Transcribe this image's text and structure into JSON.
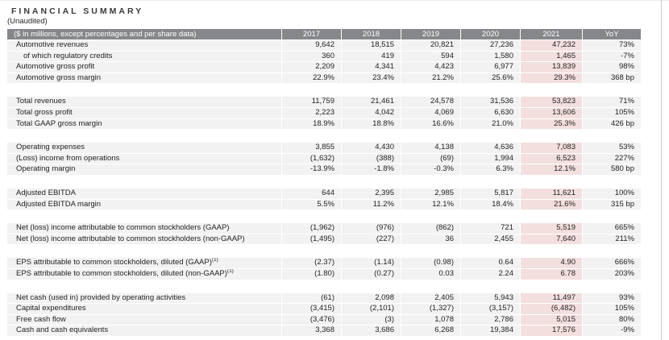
{
  "page": {
    "title": "FINANCIAL SUMMARY",
    "subtitle": "(Unaudited)"
  },
  "colors": {
    "header_bg": "#85878a",
    "header_text": "#ffffff",
    "row_bg": "#f2f2f2",
    "highlight_bg": "#f3dfde",
    "text": "#232323",
    "page_edge": "#cccccc"
  },
  "table": {
    "header": {
      "label": "($ in millions, except percentages and per share data)",
      "years": [
        "2017",
        "2018",
        "2019",
        "2020",
        "2021"
      ],
      "yoy": "YoY"
    },
    "highlight_column": "2021",
    "sections": [
      {
        "rows": [
          {
            "label": "Automotive revenues",
            "values": [
              "9,642",
              "18,515",
              "20,821",
              "27,236",
              "47,232"
            ],
            "yoy": "73%"
          },
          {
            "label": "of which regulatory credits",
            "indent": true,
            "values": [
              "360",
              "419",
              "594",
              "1,580",
              "1,465"
            ],
            "yoy": "-7%"
          },
          {
            "label": "Automotive gross profit",
            "values": [
              "2,209",
              "4,341",
              "4,423",
              "6,977",
              "13,839"
            ],
            "yoy": "98%"
          },
          {
            "label": "Automotive gross margin",
            "values": [
              "22.9%",
              "23.4%",
              "21.2%",
              "25.6%",
              "29.3%"
            ],
            "yoy": "368 bp"
          }
        ]
      },
      {
        "rows": [
          {
            "label": "Total revenues",
            "values": [
              "11,759",
              "21,461",
              "24,578",
              "31,536",
              "53,823"
            ],
            "yoy": "71%"
          },
          {
            "label": "Total gross profit",
            "values": [
              "2,223",
              "4,042",
              "4,069",
              "6,630",
              "13,606"
            ],
            "yoy": "105%"
          },
          {
            "label": "Total GAAP gross margin",
            "values": [
              "18.9%",
              "18.8%",
              "16.6%",
              "21.0%",
              "25.3%"
            ],
            "yoy": "426 bp"
          }
        ]
      },
      {
        "rows": [
          {
            "label": "Operating expenses",
            "values": [
              "3,855",
              "4,430",
              "4,138",
              "4,636",
              "7,083"
            ],
            "yoy": "53%"
          },
          {
            "label": "(Loss) income from operations",
            "values": [
              "(1,632)",
              "(388)",
              "(69)",
              "1,994",
              "6,523"
            ],
            "yoy": "227%"
          },
          {
            "label": "Operating margin",
            "values": [
              "-13.9%",
              "-1.8%",
              "-0.3%",
              "6.3%",
              "12.1%"
            ],
            "yoy": "580 bp"
          }
        ]
      },
      {
        "rows": [
          {
            "label": "Adjusted EBITDA",
            "values": [
              "644",
              "2,395",
              "2,985",
              "5,817",
              "11,621"
            ],
            "yoy": "100%"
          },
          {
            "label": "Adjusted EBITDA margin",
            "values": [
              "5.5%",
              "11.2%",
              "12.1%",
              "18.4%",
              "21.6%"
            ],
            "yoy": "315 bp"
          }
        ]
      },
      {
        "rows": [
          {
            "label": "Net (loss) income attributable to common stockholders (GAAP)",
            "values": [
              "(1,962)",
              "(976)",
              "(862)",
              "721",
              "5,519"
            ],
            "yoy": "665%"
          },
          {
            "label": "Net (loss) income attributable to common stockholders (non-GAAP)",
            "values": [
              "(1,495)",
              "(227)",
              "36",
              "2,455",
              "7,640"
            ],
            "yoy": "211%"
          }
        ]
      },
      {
        "rows": [
          {
            "label": "EPS attributable to common stockholders, diluted (GAAP)",
            "sup": "(1)",
            "values": [
              "(2.37)",
              "(1.14)",
              "(0.98)",
              "0.64",
              "4.90"
            ],
            "yoy": "666%"
          },
          {
            "label": "EPS attributable to common stockholders, diluted (non-GAAP)",
            "sup": "(1)",
            "values": [
              "(1.80)",
              "(0.27)",
              "0.03",
              "2.24",
              "6.78"
            ],
            "yoy": "203%"
          }
        ]
      },
      {
        "rows": [
          {
            "label": "Net cash (used in) provided by operating activities",
            "values": [
              "(61)",
              "2,098",
              "2,405",
              "5,943",
              "11,497"
            ],
            "yoy": "93%"
          },
          {
            "label": "Capital expenditures",
            "values": [
              "(3,415)",
              "(2,101)",
              "(1,327)",
              "(3,157)",
              "(6,482)"
            ],
            "yoy": "105%"
          },
          {
            "label": "Free cash flow",
            "values": [
              "(3,476)",
              "(3)",
              "1,078",
              "2,786",
              "5,015"
            ],
            "yoy": "80%"
          },
          {
            "label": "Cash and cash equivalents",
            "values": [
              "3,368",
              "3,686",
              "6,268",
              "19,384",
              "17,576"
            ],
            "yoy": "-9%"
          }
        ]
      }
    ]
  }
}
